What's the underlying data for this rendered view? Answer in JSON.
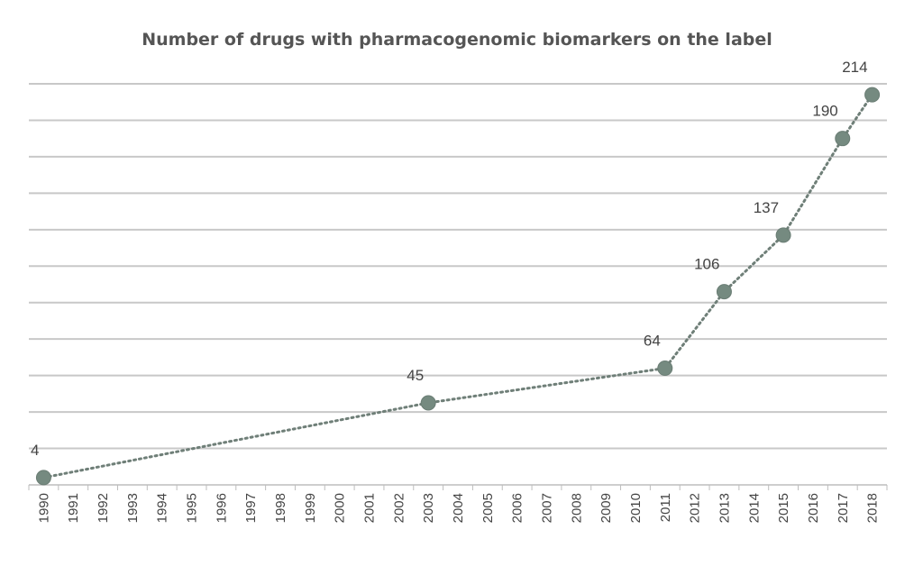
{
  "chart_data": {
    "type": "line",
    "title": "Number of drugs with pharmacogenomic biomarkers on the label",
    "xlabel": "",
    "ylabel": "",
    "categories": [
      "1990",
      "1991",
      "1992",
      "1993",
      "1994",
      "1995",
      "1996",
      "1997",
      "1998",
      "1999",
      "2000",
      "2001",
      "2002",
      "2003",
      "2004",
      "2005",
      "2006",
      "2007",
      "2008",
      "2009",
      "2010",
      "2011",
      "2012",
      "2013",
      "2014",
      "2015",
      "2016",
      "2017",
      "2018"
    ],
    "ylim": [
      0,
      220
    ],
    "grid": true,
    "legend": "none",
    "series": [
      {
        "points": [
          {
            "x": 1990,
            "y": 4,
            "label": "4"
          },
          {
            "x": 2003,
            "y": 45,
            "label": "45"
          },
          {
            "x": 2011,
            "y": 64,
            "label": "64"
          },
          {
            "x": 2013,
            "y": 106,
            "label": "106"
          },
          {
            "x": 2015,
            "y": 137,
            "label": "137"
          },
          {
            "x": 2017,
            "y": 190,
            "label": "190"
          },
          {
            "x": 2018,
            "y": 214,
            "label": "214"
          }
        ]
      }
    ],
    "colors": {
      "series": "#6f7f78",
      "grid": "#c8c8c8"
    }
  }
}
